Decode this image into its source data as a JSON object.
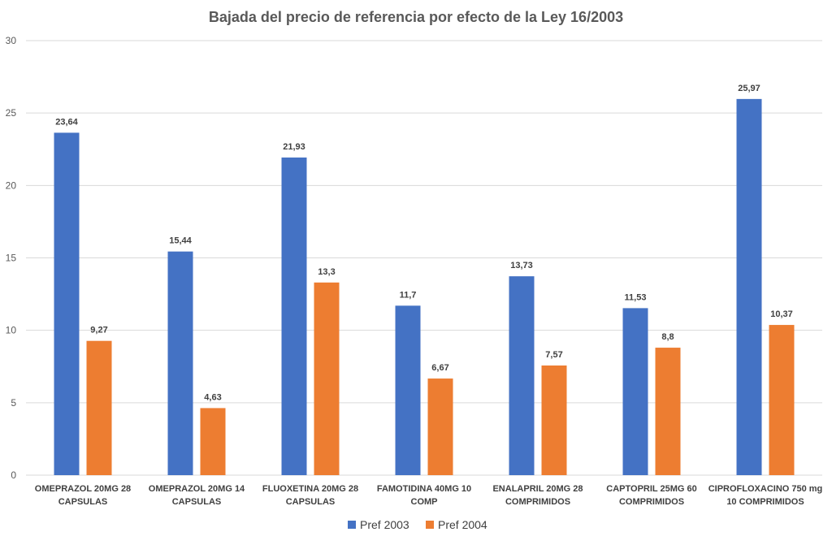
{
  "chart_data": {
    "type": "bar",
    "title": "Bajada del precio de referencia por efecto de la Ley 16/2003",
    "xlabel": "",
    "ylabel": "",
    "ylim": [
      0,
      30
    ],
    "yticks": [
      "0",
      "5",
      "10",
      "15",
      "20",
      "25",
      "30"
    ],
    "grid": true,
    "legend_position": "bottom",
    "categories": [
      [
        "OMEPRAZOL 20MG 28",
        "CAPSULAS"
      ],
      [
        "OMEPRAZOL 20MG 14",
        "CAPSULAS"
      ],
      [
        "FLUOXETINA 20MG 28",
        "CAPSULAS"
      ],
      [
        "FAMOTIDINA 40MG 10",
        "COMP"
      ],
      [
        "ENALAPRIL 20MG 28",
        "COMPRIMIDOS"
      ],
      [
        "CAPTOPRIL 25MG 60",
        "COMPRIMIDOS"
      ],
      [
        "CIPROFLOXACINO 750 mg",
        "10 COMPRIMIDOS"
      ]
    ],
    "series": [
      {
        "name": "Pref 2003",
        "color": "#4472c4",
        "values": [
          23.64,
          15.44,
          21.93,
          11.7,
          13.73,
          11.53,
          25.97
        ],
        "labels": [
          "23,64",
          "15,44",
          "21,93",
          "11,7",
          "13,73",
          "11,53",
          "25,97"
        ]
      },
      {
        "name": "Pref 2004",
        "color": "#ed7d31",
        "values": [
          9.27,
          4.63,
          13.3,
          6.67,
          7.57,
          8.8,
          10.37
        ],
        "labels": [
          "9,27",
          "4,63",
          "13,3",
          "6,67",
          "7,57",
          "8,8",
          "10,37"
        ]
      }
    ]
  }
}
